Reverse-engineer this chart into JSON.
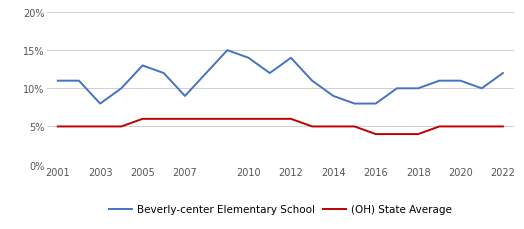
{
  "school_years": [
    2001,
    2002,
    2003,
    2004,
    2005,
    2006,
    2007,
    2008,
    2009,
    2010,
    2011,
    2012,
    2013,
    2014,
    2015,
    2016,
    2017,
    2018,
    2019,
    2020,
    2021,
    2022
  ],
  "school_values": [
    0.11,
    0.11,
    0.08,
    0.1,
    0.13,
    0.12,
    0.09,
    0.12,
    0.15,
    0.14,
    0.12,
    0.14,
    0.11,
    0.09,
    0.08,
    0.08,
    0.1,
    0.1,
    0.11,
    0.11,
    0.1,
    0.12
  ],
  "state_years": [
    2001,
    2002,
    2003,
    2004,
    2005,
    2006,
    2007,
    2008,
    2009,
    2010,
    2011,
    2012,
    2013,
    2014,
    2015,
    2016,
    2017,
    2018,
    2019,
    2020,
    2021,
    2022
  ],
  "state_values": [
    0.05,
    0.05,
    0.05,
    0.05,
    0.06,
    0.06,
    0.06,
    0.06,
    0.06,
    0.06,
    0.06,
    0.06,
    0.05,
    0.05,
    0.05,
    0.04,
    0.04,
    0.04,
    0.05,
    0.05,
    0.05,
    0.05
  ],
  "school_color": "#4472c4",
  "state_color": "#c00000",
  "background_color": "#ffffff",
  "grid_color": "#d0d0d0",
  "xticks": [
    2001,
    2003,
    2005,
    2007,
    2010,
    2012,
    2014,
    2016,
    2018,
    2020,
    2022
  ],
  "yticks": [
    0.0,
    0.05,
    0.1,
    0.15,
    0.2
  ],
  "ylim": [
    0.0,
    0.205
  ],
  "xlim": [
    2000.5,
    2022.5
  ],
  "school_label": "Beverly-center Elementary School",
  "state_label": "(OH) State Average",
  "tick_fontsize": 7.0,
  "legend_fontsize": 7.5,
  "line_width": 1.4
}
